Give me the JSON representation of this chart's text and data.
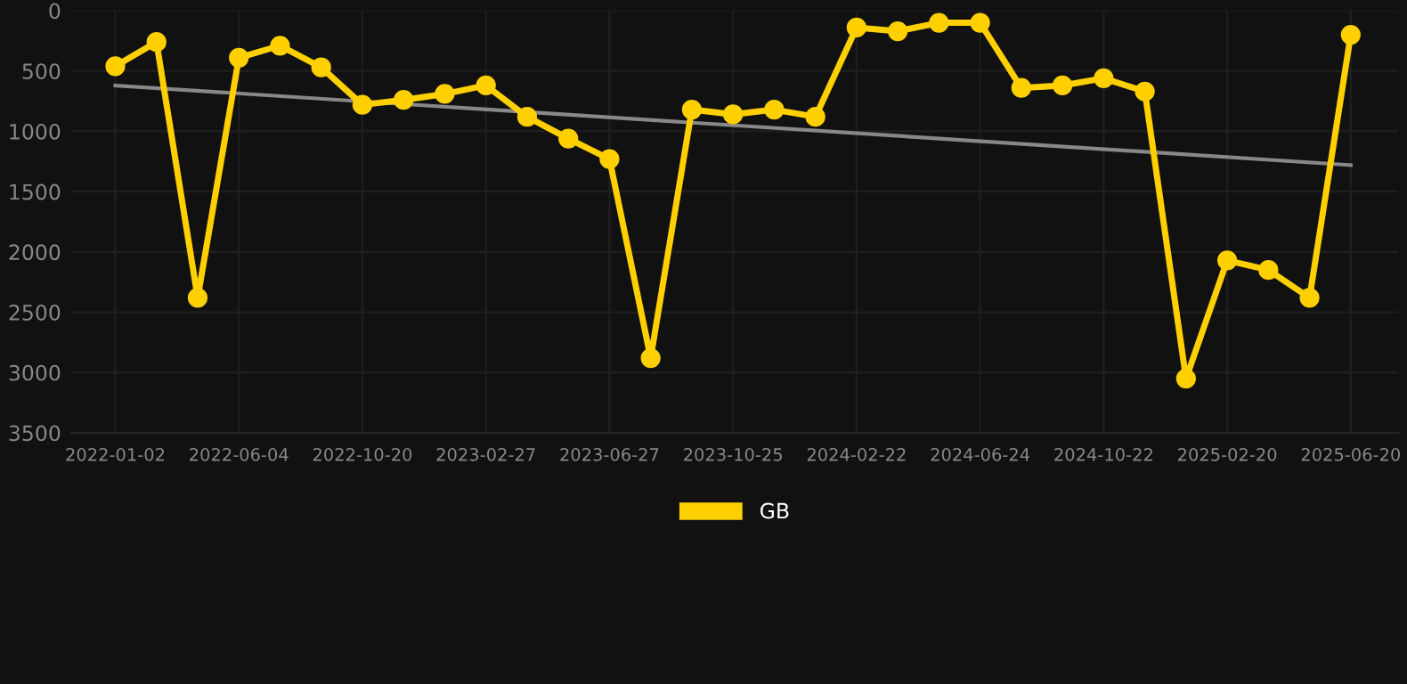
{
  "chart_data": {
    "type": "line",
    "categories": [
      "2022-01-02",
      null,
      null,
      "2022-06-04",
      null,
      null,
      "2022-10-20",
      null,
      null,
      "2023-02-27",
      null,
      null,
      "2023-06-27",
      null,
      null,
      "2023-10-25",
      null,
      null,
      "2024-02-22",
      null,
      null,
      "2024-06-24",
      null,
      null,
      "2024-10-22",
      null,
      null,
      "2025-02-20",
      null,
      null,
      "2025-06-20"
    ],
    "series": [
      {
        "name": "GB",
        "color": "#ffd000",
        "marker": "circle",
        "values": [
          460,
          260,
          2380,
          390,
          290,
          470,
          780,
          740,
          690,
          620,
          880,
          1060,
          1230,
          2880,
          820,
          860,
          820,
          880,
          140,
          170,
          100,
          100,
          640,
          620,
          560,
          670,
          3050,
          2070,
          2150,
          2380,
          200
        ]
      },
      {
        "type": "line",
        "color": "#888888",
        "marker": "none",
        "values": [
          620,
          null,
          null,
          null,
          null,
          null,
          null,
          null,
          null,
          null,
          null,
          null,
          null,
          null,
          null,
          null,
          null,
          null,
          null,
          null,
          null,
          null,
          null,
          null,
          null,
          null,
          null,
          null,
          null,
          null,
          1280
        ]
      }
    ],
    "ylim": [
      3500,
      0
    ],
    "yticks": [
      0,
      500,
      1000,
      1500,
      2000,
      2500,
      3000,
      3500
    ],
    "grid": true,
    "legend": "bottom"
  }
}
